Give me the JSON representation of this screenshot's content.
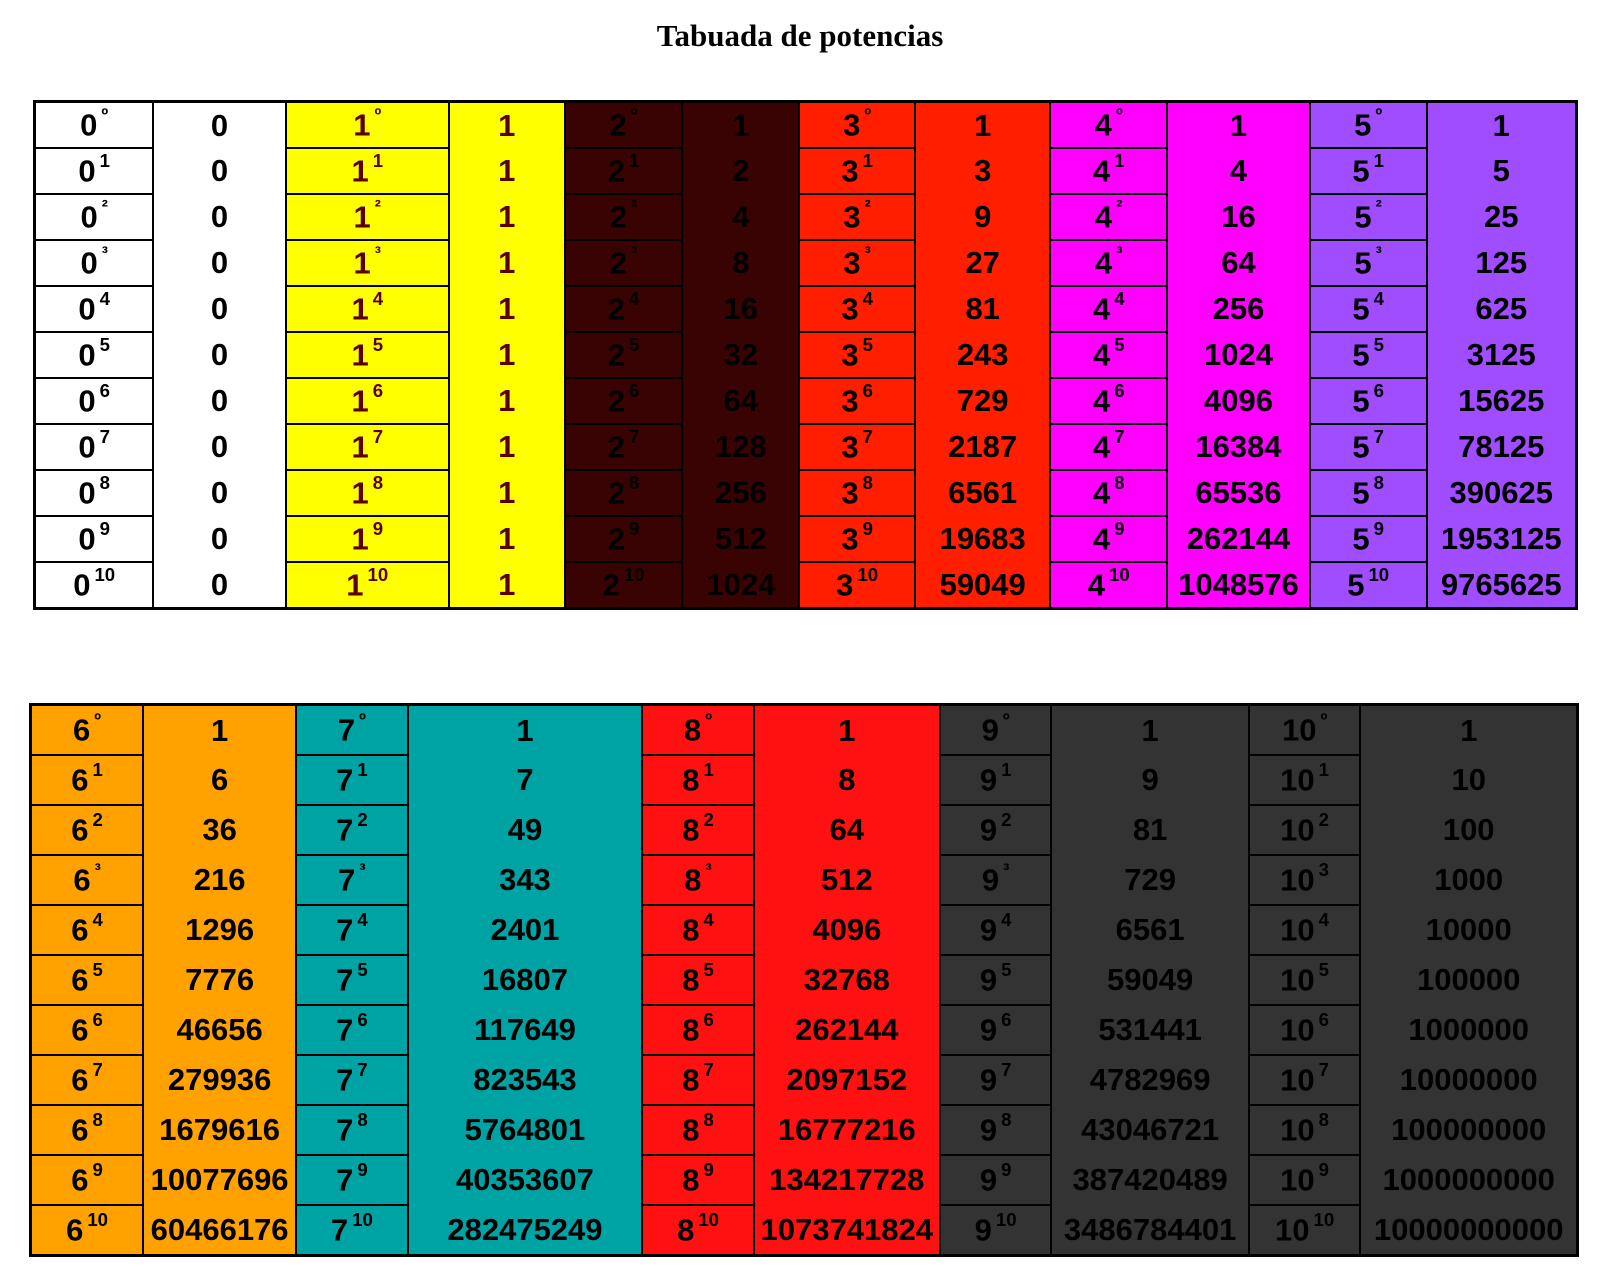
{
  "title": "Tabuada de potencias",
  "colors": {
    "0": "#ffffff",
    "1": "#ffff00",
    "2": "#3a0303",
    "3": "#ff1f00",
    "4": "#ff00ff",
    "5": "#9f4dff",
    "6": "#ffa200",
    "7": "#00a3a3",
    "8": "#ff1111",
    "9": "#333333",
    "10": "#333333"
  },
  "text_colors": {
    "0": "#000000",
    "1": "#5a0000",
    "2": "#000000",
    "3": "#000000",
    "4": "#000000",
    "5": "#000000",
    "6": "#000000",
    "7": "#000000",
    "8": "#000000",
    "9": "#000000",
    "10": "#000000"
  },
  "top_table": [
    {
      "base": "0",
      "exponents": [
        "º",
        "1",
        "²",
        "³",
        "4",
        "5",
        "6",
        "7",
        "8",
        "9",
        "10"
      ],
      "values": [
        "0",
        "0",
        "0",
        "0",
        "0",
        "0",
        "0",
        "0",
        "0",
        "0",
        "0"
      ]
    },
    {
      "base": "1",
      "exponents": [
        "º",
        "1",
        "²",
        "³",
        "4",
        "5",
        "6",
        "7",
        "8",
        "9",
        "10"
      ],
      "values": [
        "1",
        "1",
        "1",
        "1",
        "1",
        "1",
        "1",
        "1",
        "1",
        "1",
        "1"
      ]
    },
    {
      "base": "2",
      "exponents": [
        "º",
        "1",
        "²",
        "³",
        "4",
        "5",
        "6",
        "7",
        "8",
        "9",
        "10"
      ],
      "values": [
        "1",
        "2",
        "4",
        "8",
        "16",
        "32",
        "64",
        "128",
        "256",
        "512",
        "1024"
      ]
    },
    {
      "base": "3",
      "exponents": [
        "º",
        "1",
        "²",
        "³",
        "4",
        "5",
        "6",
        "7",
        "8",
        "9",
        "10"
      ],
      "values": [
        "1",
        "3",
        "9",
        "27",
        "81",
        "243",
        "729",
        "2187",
        "6561",
        "19683",
        "59049"
      ]
    },
    {
      "base": "4",
      "exponents": [
        "º",
        "1",
        "²",
        "³",
        "4",
        "5",
        "6",
        "7",
        "8",
        "9",
        "10"
      ],
      "values": [
        "1",
        "4",
        "16",
        "64",
        "256",
        "1024",
        "4096",
        "16384",
        "65536",
        "262144",
        "1048576"
      ]
    },
    {
      "base": "5",
      "exponents": [
        "º",
        "1",
        "²",
        "³",
        "4",
        "5",
        "6",
        "7",
        "8",
        "9",
        "10"
      ],
      "values": [
        "1",
        "5",
        "25",
        "125",
        "625",
        "3125",
        "15625",
        "78125",
        "390625",
        "1953125",
        "9765625"
      ]
    }
  ],
  "bottom_table": [
    {
      "base": "6",
      "exponents": [
        "º",
        "1",
        "2",
        "³",
        "4",
        "5",
        "6",
        "7",
        "8",
        "9",
        "10"
      ],
      "values": [
        "1",
        "6",
        "36",
        "216",
        "1296",
        "7776",
        "46656",
        "279936",
        "1679616",
        "10077696",
        "60466176"
      ]
    },
    {
      "base": "7",
      "exponents": [
        "º",
        "1",
        "2",
        "³",
        "4",
        "5",
        "6",
        "7",
        "8",
        "9",
        "10"
      ],
      "values": [
        "1",
        "7",
        "49",
        "343",
        "2401",
        "16807",
        "117649",
        "823543",
        "5764801",
        "40353607",
        "282475249"
      ]
    },
    {
      "base": "8",
      "exponents": [
        "º",
        "1",
        "2",
        "³",
        "4",
        "5",
        "6",
        "7",
        "8",
        "9",
        "10"
      ],
      "values": [
        "1",
        "8",
        "64",
        "512",
        "4096",
        "32768",
        "262144",
        "2097152",
        "16777216",
        "134217728",
        "1073741824"
      ]
    },
    {
      "base": "9",
      "exponents": [
        "º",
        "1",
        "2",
        "³",
        "4",
        "5",
        "6",
        "7",
        "8",
        "9",
        "10"
      ],
      "values": [
        "1",
        "9",
        "81",
        "729",
        "6561",
        "59049",
        "531441",
        "4782969",
        "43046721",
        "387420489",
        "3486784401"
      ]
    },
    {
      "base": "10",
      "exponents": [
        "º",
        "1",
        "2",
        "3",
        "4",
        "5",
        "6",
        "7",
        "8",
        "9",
        "10"
      ],
      "values": [
        "1",
        "10",
        "100",
        "1000",
        "10000",
        "100000",
        "1000000",
        "10000000",
        "100000000",
        "1000000000",
        "10000000000"
      ]
    }
  ]
}
